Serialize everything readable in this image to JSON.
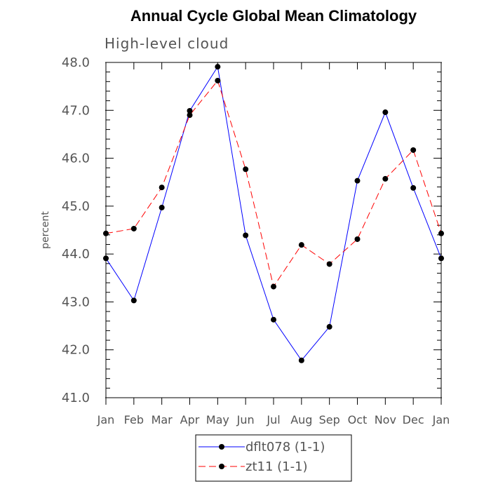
{
  "chart_data": {
    "type": "line",
    "title": "Annual Cycle Global Mean Climatology",
    "subtitle": "High-level cloud",
    "xlabel": "",
    "ylabel": "percent",
    "categories": [
      "Jan",
      "Feb",
      "Mar",
      "Apr",
      "May",
      "Jun",
      "Jul",
      "Aug",
      "Sep",
      "Oct",
      "Nov",
      "Dec",
      "Jan"
    ],
    "ylim": [
      41.0,
      48.0
    ],
    "yticks": [
      41.0,
      42.0,
      43.0,
      44.0,
      45.0,
      46.0,
      47.0,
      48.0
    ],
    "ytick_labels": [
      "41.0",
      "42.0",
      "43.0",
      "44.0",
      "45.0",
      "46.0",
      "47.0",
      "48.0"
    ],
    "grid": false,
    "legend_position": "bottom-center",
    "series": [
      {
        "name": "dflt078 (1-1)",
        "color": "#0000ff",
        "dash": "solid",
        "values": [
          43.91,
          43.03,
          44.97,
          46.99,
          47.91,
          44.39,
          42.63,
          41.78,
          42.48,
          45.53,
          46.96,
          45.38,
          43.91
        ]
      },
      {
        "name": "zt11 (1-1)",
        "color": "#ff0000",
        "dash": "dashed",
        "values": [
          44.43,
          44.53,
          45.39,
          46.9,
          47.62,
          45.77,
          43.32,
          44.19,
          43.79,
          44.31,
          45.57,
          46.17,
          44.43
        ]
      }
    ]
  }
}
